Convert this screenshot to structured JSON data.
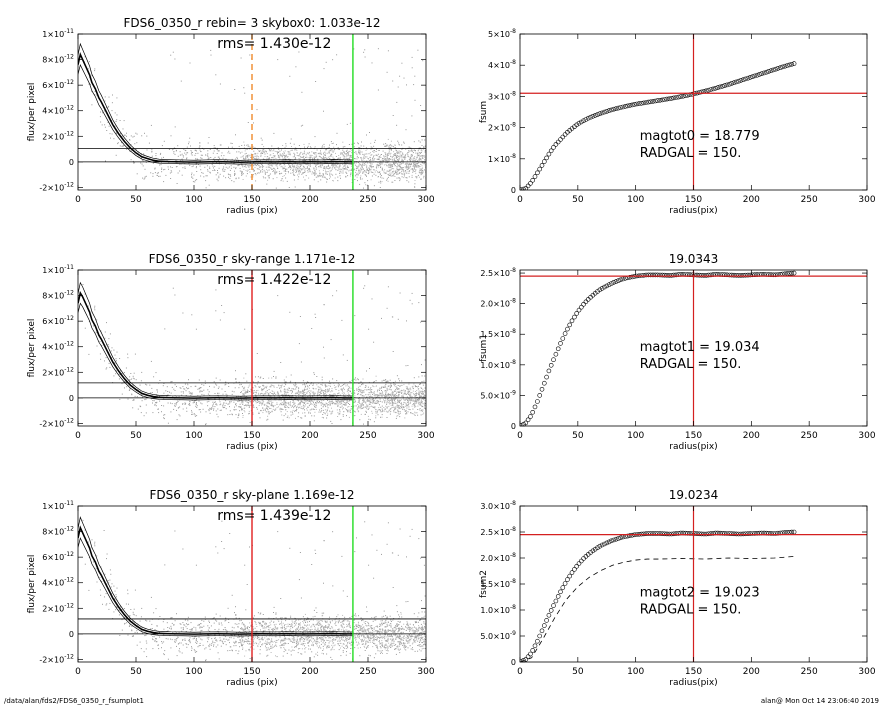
{
  "footer": {
    "path": "/data/alan/fds2/FDS6_0350_r_fsumplot1",
    "stamp": "alan@  Mon Oct 14 23:06:40 2019"
  },
  "chart_data": [
    {
      "id": "p1",
      "type": "scatter",
      "title": "FDS6_0350_r rebin= 3    skybox0:  1.033e-12",
      "rms_label": "rms= 1.430e-12",
      "xlabel": "radius (pix)",
      "ylabel": "flux/per pixel",
      "xlim": [
        0,
        300
      ],
      "ylim": [
        -2.2e-12,
        1e-11
      ],
      "xticks": [
        0,
        50,
        100,
        150,
        200,
        250,
        300
      ],
      "yticks": [
        {
          "value": 1e-11,
          "label": "1×10",
          "exp": "-11"
        },
        {
          "value": 8e-12,
          "label": "8×10",
          "exp": "-12"
        },
        {
          "value": 6e-12,
          "label": "6×10",
          "exp": "-12"
        },
        {
          "value": 4e-12,
          "label": "4×10",
          "exp": "-12"
        },
        {
          "value": 2e-12,
          "label": "2×10",
          "exp": "-12"
        },
        {
          "value": 0,
          "label": "0",
          "exp": ""
        },
        {
          "value": -2e-12,
          "label": "-2×10",
          "exp": "-12"
        }
      ],
      "hlines": [
        0,
        1.033e-12
      ],
      "vlines": [
        {
          "x": 150,
          "color": "#f08a2c",
          "dashed": true
        },
        {
          "x": 237,
          "color": "#22dd22",
          "dashed": false
        }
      ],
      "profile": {
        "x": [
          0,
          2,
          4,
          6,
          8,
          10,
          12,
          15,
          18,
          20,
          25,
          30,
          35,
          40,
          45,
          50,
          55,
          60,
          65,
          70,
          80,
          90,
          100,
          110,
          120,
          130,
          140,
          150,
          160,
          170,
          180,
          190,
          200,
          210,
          220,
          230,
          237
        ],
        "y": [
          7.6e-12,
          8.4e-12,
          8e-12,
          7.6e-12,
          7.2e-12,
          6.8e-12,
          6.2e-12,
          5.7e-12,
          5e-12,
          4.7e-12,
          3.8e-12,
          2.9e-12,
          2.2e-12,
          1.6e-12,
          1.1e-12,
          7e-13,
          4e-13,
          2.5e-13,
          1.2e-13,
          5e-14,
          2e-14,
          0.0,
          -2e-14,
          0.0,
          2e-14,
          0.0,
          -3e-14,
          0.0,
          1e-14,
          0.0,
          2e-14,
          0.0,
          1e-14,
          0.0,
          3e-14,
          1e-14,
          0.0
        ]
      }
    },
    {
      "id": "p2",
      "type": "scatter",
      "title": "",
      "xlabel": "radius(pix)",
      "ylabel": "fsum",
      "xlim": [
        0,
        300
      ],
      "ylim": [
        0,
        5e-08
      ],
      "xticks": [
        0,
        50,
        100,
        150,
        200,
        250,
        300
      ],
      "yticks": [
        {
          "value": 0,
          "label": "0",
          "exp": ""
        },
        {
          "value": 1e-08,
          "label": "1×10",
          "exp": "-8"
        },
        {
          "value": 2e-08,
          "label": "2×10",
          "exp": "-8"
        },
        {
          "value": 3e-08,
          "label": "3×10",
          "exp": "-8"
        },
        {
          "value": 4e-08,
          "label": "4×10",
          "exp": "-8"
        },
        {
          "value": 5e-08,
          "label": "5×10",
          "exp": "-8"
        }
      ],
      "vline": 150,
      "hline": 3.1e-08,
      "annotations": [
        "magtot0 =  18.779",
        "RADGAL =    150."
      ],
      "curve": {
        "x": [
          0,
          5,
          10,
          15,
          20,
          25,
          30,
          40,
          50,
          60,
          70,
          80,
          90,
          100,
          110,
          120,
          130,
          140,
          150,
          160,
          170,
          180,
          190,
          200,
          210,
          220,
          230,
          237
        ],
        "y": [
          0,
          5e-10,
          2.5e-09,
          5.5e-09,
          8.5e-09,
          1.15e-08,
          1.42e-08,
          1.82e-08,
          2.12e-08,
          2.32e-08,
          2.46e-08,
          2.58e-08,
          2.67e-08,
          2.75e-08,
          2.81e-08,
          2.87e-08,
          2.93e-08,
          3e-08,
          3.08e-08,
          3.17e-08,
          3.27e-08,
          3.38e-08,
          3.5e-08,
          3.62e-08,
          3.74e-08,
          3.86e-08,
          3.98e-08,
          4.05e-08
        ]
      },
      "dashed": null
    },
    {
      "id": "p3",
      "type": "scatter",
      "title": "FDS6_0350_r sky-range  1.171e-12",
      "rms_label": "rms= 1.422e-12",
      "xlabel": "radius (pix)",
      "ylabel": "flux/per pixel",
      "xlim": [
        0,
        300
      ],
      "ylim": [
        -2.2e-12,
        1e-11
      ],
      "xticks": [
        0,
        50,
        100,
        150,
        200,
        250,
        300
      ],
      "yticks": [
        {
          "value": 1e-11,
          "label": "1×10",
          "exp": "-11"
        },
        {
          "value": 8e-12,
          "label": "8×10",
          "exp": "-12"
        },
        {
          "value": 6e-12,
          "label": "6×10",
          "exp": "-12"
        },
        {
          "value": 4e-12,
          "label": "4×10",
          "exp": "-12"
        },
        {
          "value": 2e-12,
          "label": "2×10",
          "exp": "-12"
        },
        {
          "value": 0,
          "label": "0",
          "exp": ""
        },
        {
          "value": -2e-12,
          "label": "-2×10",
          "exp": "-12"
        }
      ],
      "hlines": [
        0,
        1.171e-12
      ],
      "vlines": [
        {
          "x": 150,
          "color": "#e02020",
          "dashed": false
        },
        {
          "x": 237,
          "color": "#22dd22",
          "dashed": false
        }
      ],
      "profile": {
        "x": [
          0,
          2,
          4,
          6,
          8,
          10,
          12,
          15,
          18,
          20,
          25,
          30,
          35,
          40,
          45,
          50,
          55,
          60,
          65,
          70,
          80,
          90,
          100,
          110,
          120,
          130,
          140,
          150,
          160,
          170,
          180,
          190,
          200,
          210,
          220,
          230,
          237
        ],
        "y": [
          7.4e-12,
          8.2e-12,
          7.9e-12,
          7.5e-12,
          7.1e-12,
          6.7e-12,
          6.1e-12,
          5.6e-12,
          4.9e-12,
          4.6e-12,
          3.7e-12,
          2.8e-12,
          2.1e-12,
          1.5e-12,
          1e-12,
          6.5e-13,
          3.5e-13,
          2e-13,
          1e-13,
          4e-14,
          1e-14,
          0.0,
          -2e-14,
          0.0,
          1e-14,
          0.0,
          -2e-14,
          0.0,
          1e-14,
          0.0,
          2e-14,
          0.0,
          0.0,
          1e-14,
          2e-14,
          0.0,
          0.0
        ]
      }
    },
    {
      "id": "p4",
      "type": "scatter",
      "title": "19.0343",
      "xlabel": "radius(pix)",
      "ylabel": "fsum1",
      "xlim": [
        0,
        300
      ],
      "ylim": [
        0,
        2.55e-08
      ],
      "xticks": [
        0,
        50,
        100,
        150,
        200,
        250,
        300
      ],
      "yticks": [
        {
          "value": 0,
          "label": "0",
          "exp": ""
        },
        {
          "value": 5e-09,
          "label": "5.0×10",
          "exp": "-9"
        },
        {
          "value": 1e-08,
          "label": "1.0×10",
          "exp": "-8"
        },
        {
          "value": 1.5e-08,
          "label": "1.5×10",
          "exp": "-8"
        },
        {
          "value": 2e-08,
          "label": "2.0×10",
          "exp": "-8"
        },
        {
          "value": 2.5e-08,
          "label": "2.5×10",
          "exp": "-8"
        }
      ],
      "vline": 150,
      "hline": 2.45e-08,
      "annotations": [
        "magtot1 =  19.034",
        "RADGAL =    150."
      ],
      "curve": {
        "x": [
          0,
          5,
          10,
          15,
          20,
          25,
          30,
          35,
          40,
          45,
          50,
          55,
          60,
          65,
          70,
          80,
          90,
          100,
          110,
          120,
          130,
          140,
          150,
          160,
          170,
          180,
          190,
          200,
          210,
          220,
          230,
          237
        ],
        "y": [
          0,
          5e-10,
          1.8e-09,
          4e-09,
          6.5e-09,
          9e-09,
          1.13e-08,
          1.35e-08,
          1.55e-08,
          1.72e-08,
          1.87e-08,
          1.99e-08,
          2.09e-08,
          2.17e-08,
          2.24e-08,
          2.34e-08,
          2.41e-08,
          2.45e-08,
          2.47e-08,
          2.47e-08,
          2.46e-08,
          2.48e-08,
          2.47e-08,
          2.46e-08,
          2.48e-08,
          2.47e-08,
          2.46e-08,
          2.47e-08,
          2.48e-08,
          2.47e-08,
          2.49e-08,
          2.5e-08
        ]
      },
      "dashed": null
    },
    {
      "id": "p5",
      "type": "scatter",
      "title": "FDS6_0350_r sky-plane  1.169e-12",
      "rms_label": "rms= 1.439e-12",
      "xlabel": "radius (pix)",
      "ylabel": "flux/per pixel",
      "xlim": [
        0,
        300
      ],
      "ylim": [
        -2.2e-12,
        1e-11
      ],
      "xticks": [
        0,
        50,
        100,
        150,
        200,
        250,
        300
      ],
      "yticks": [
        {
          "value": 1e-11,
          "label": "1×10",
          "exp": "-11"
        },
        {
          "value": 8e-12,
          "label": "8×10",
          "exp": "-12"
        },
        {
          "value": 6e-12,
          "label": "6×10",
          "exp": "-12"
        },
        {
          "value": 4e-12,
          "label": "4×10",
          "exp": "-12"
        },
        {
          "value": 2e-12,
          "label": "2×10",
          "exp": "-12"
        },
        {
          "value": 0,
          "label": "0",
          "exp": ""
        },
        {
          "value": -2e-12,
          "label": "-2×10",
          "exp": "-12"
        }
      ],
      "hlines": [
        0,
        1.169e-12
      ],
      "vlines": [
        {
          "x": 150,
          "color": "#e02020",
          "dashed": false
        },
        {
          "x": 237,
          "color": "#22dd22",
          "dashed": false
        }
      ],
      "profile": {
        "x": [
          0,
          2,
          4,
          6,
          8,
          10,
          12,
          15,
          18,
          20,
          25,
          30,
          35,
          40,
          45,
          50,
          55,
          60,
          65,
          70,
          80,
          90,
          100,
          110,
          120,
          130,
          140,
          150,
          160,
          170,
          180,
          190,
          200,
          210,
          220,
          230,
          237
        ],
        "y": [
          7.5e-12,
          8.3e-12,
          7.9e-12,
          7.5e-12,
          7.1e-12,
          6.7e-12,
          6.1e-12,
          5.6e-12,
          4.9e-12,
          4.6e-12,
          3.7e-12,
          2.8e-12,
          2.1e-12,
          1.5e-12,
          1e-12,
          6.5e-13,
          3.5e-13,
          2e-13,
          1e-13,
          4e-14,
          1e-14,
          0.0,
          -2e-14,
          0.0,
          1e-14,
          0.0,
          -2e-14,
          0.0,
          1e-14,
          0.0,
          2e-14,
          0.0,
          0.0,
          1e-14,
          2e-14,
          0.0,
          0.0
        ]
      }
    },
    {
      "id": "p6",
      "type": "scatter",
      "title": "19.0234",
      "xlabel": "radius(pix)",
      "ylabel": "fsum2",
      "xlim": [
        0,
        300
      ],
      "ylim": [
        0,
        3e-08
      ],
      "xticks": [
        0,
        50,
        100,
        150,
        200,
        250,
        300
      ],
      "yticks": [
        {
          "value": 0,
          "label": "0",
          "exp": ""
        },
        {
          "value": 5e-09,
          "label": "5.0×10",
          "exp": "-9"
        },
        {
          "value": 1e-08,
          "label": "1.0×10",
          "exp": "-8"
        },
        {
          "value": 1.5e-08,
          "label": "1.5×10",
          "exp": "-8"
        },
        {
          "value": 2e-08,
          "label": "2.0×10",
          "exp": "-8"
        },
        {
          "value": 2.5e-08,
          "label": "2.5×10",
          "exp": "-8"
        },
        {
          "value": 3e-08,
          "label": "3.0×10",
          "exp": "-8"
        }
      ],
      "vline": 150,
      "hline": 2.45e-08,
      "annotations": [
        "magtot2 =  19.023",
        "RADGAL =    150."
      ],
      "curve": {
        "x": [
          0,
          5,
          10,
          15,
          20,
          25,
          30,
          35,
          40,
          45,
          50,
          55,
          60,
          65,
          70,
          80,
          90,
          100,
          110,
          120,
          130,
          140,
          150,
          160,
          170,
          180,
          190,
          200,
          210,
          220,
          230,
          237
        ],
        "y": [
          0,
          5e-10,
          1.8e-09,
          4e-09,
          6.5e-09,
          9e-09,
          1.13e-08,
          1.35e-08,
          1.55e-08,
          1.72e-08,
          1.87e-08,
          1.99e-08,
          2.09e-08,
          2.17e-08,
          2.24e-08,
          2.34e-08,
          2.41e-08,
          2.45e-08,
          2.47e-08,
          2.47e-08,
          2.46e-08,
          2.48e-08,
          2.47e-08,
          2.46e-08,
          2.48e-08,
          2.47e-08,
          2.46e-08,
          2.47e-08,
          2.48e-08,
          2.47e-08,
          2.49e-08,
          2.5e-08
        ]
      },
      "dashed": {
        "x": [
          0,
          10,
          20,
          30,
          40,
          50,
          60,
          70,
          80,
          90,
          100,
          110,
          120,
          140,
          160,
          180,
          200,
          220,
          237
        ],
        "y": [
          0,
          8e-10,
          4.5e-09,
          8.5e-09,
          1.2e-08,
          1.45e-08,
          1.63e-08,
          1.76e-08,
          1.86e-08,
          1.92e-08,
          1.96e-08,
          1.98e-08,
          1.98e-08,
          1.99e-08,
          1.98e-08,
          2e-08,
          1.99e-08,
          2e-08,
          2.03e-08
        ]
      }
    }
  ]
}
